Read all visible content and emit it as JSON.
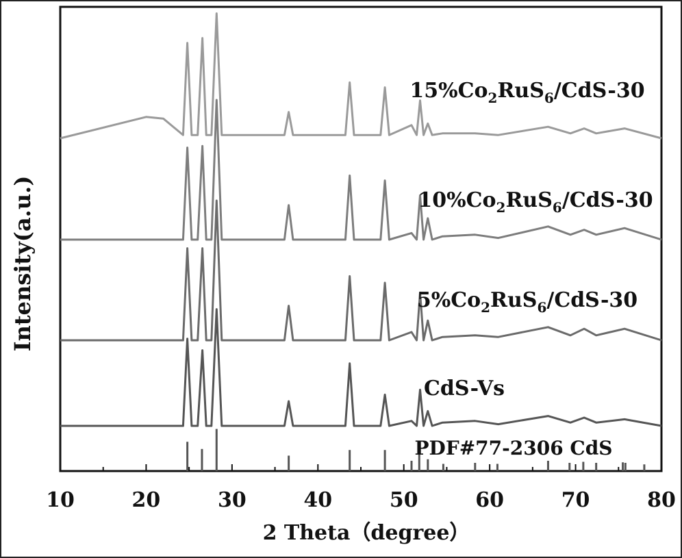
{
  "chart_data": {
    "type": "line",
    "xlabel": "2 Theta（degree）",
    "ylabel": "Intensity(a.u.)",
    "xlim": [
      10,
      80
    ],
    "xticks": [
      10,
      20,
      30,
      40,
      50,
      60,
      70,
      80
    ],
    "grid": false,
    "y_tick_labels_shown": false,
    "series": [
      {
        "name": "15%Co₂RuS₆/CdS-30",
        "label_main": "15%Co",
        "label_sub1": "2",
        "label_mid": "RuS",
        "label_sub2": "6",
        "label_tail": "/CdS-30",
        "color": "#9a9a9a",
        "baseline": 3.0,
        "x": [
          10,
          20,
          22,
          24.3,
          24.8,
          25.3,
          26.0,
          26.55,
          27.0,
          27.6,
          28.2,
          28.8,
          30,
          36.1,
          36.6,
          37.1,
          43.2,
          43.7,
          44.2,
          47.3,
          47.8,
          48.3,
          50.9,
          51.5,
          51.9,
          52.3,
          52.8,
          53.3,
          54.5,
          58.3,
          61,
          66.8,
          69.4,
          71.0,
          72.4,
          75.7,
          80
        ],
        "y": [
          3.0,
          3.13,
          3.12,
          3.02,
          3.58,
          3.02,
          3.02,
          3.61,
          3.02,
          3.02,
          3.76,
          3.02,
          3.02,
          3.02,
          3.16,
          3.02,
          3.02,
          3.34,
          3.02,
          3.02,
          3.31,
          3.02,
          3.08,
          3.02,
          3.23,
          3.02,
          3.09,
          3.02,
          3.03,
          3.03,
          3.02,
          3.07,
          3.03,
          3.06,
          3.03,
          3.06,
          3.0
        ]
      },
      {
        "name": "10%Co₂RuS₆/CdS-30",
        "label_main": "10%Co",
        "label_sub1": "2",
        "label_mid": "RuS",
        "label_sub2": "6",
        "label_tail": "/CdS-30",
        "color": "#7d7d7d",
        "baseline": 2.0,
        "x": [
          10,
          24.3,
          24.8,
          25.3,
          26.0,
          26.55,
          27.0,
          27.6,
          28.2,
          28.8,
          36.1,
          36.6,
          37.1,
          43.2,
          43.7,
          44.2,
          47.3,
          47.8,
          48.3,
          50.9,
          51.5,
          51.9,
          52.3,
          52.8,
          53.3,
          54.5,
          58.3,
          61,
          66.8,
          69.4,
          71.0,
          72.4,
          75.7,
          80
        ],
        "y": [
          2.0,
          2.0,
          2.56,
          2.0,
          2.0,
          2.57,
          2.0,
          2.0,
          2.85,
          2.0,
          2.0,
          2.21,
          2.0,
          2.0,
          2.39,
          2.0,
          2.0,
          2.36,
          2.0,
          2.04,
          2.0,
          2.27,
          2.0,
          2.13,
          2.0,
          2.02,
          2.03,
          2.01,
          2.08,
          2.03,
          2.06,
          2.03,
          2.07,
          2.0
        ]
      },
      {
        "name": "5%Co₂RuS₆/CdS-30",
        "label_main": "5%Co",
        "label_sub1": "2",
        "label_mid": "RuS",
        "label_sub2": "6",
        "label_tail": "/CdS-30",
        "color": "#6a6a6a",
        "baseline": 1.0,
        "x": [
          10,
          24.3,
          24.8,
          25.3,
          26.0,
          26.55,
          27.0,
          27.6,
          28.2,
          28.8,
          36.1,
          36.6,
          37.1,
          43.2,
          43.7,
          44.2,
          47.3,
          47.8,
          48.3,
          50.9,
          51.5,
          51.9,
          52.3,
          52.8,
          53.3,
          54.5,
          58.3,
          61,
          66.8,
          69.4,
          71.0,
          72.4,
          75.7,
          80
        ],
        "y": [
          1.0,
          1.0,
          1.56,
          1.0,
          1.0,
          1.56,
          1.0,
          1.0,
          1.85,
          1.0,
          1.0,
          1.21,
          1.0,
          1.0,
          1.39,
          1.0,
          1.0,
          1.35,
          1.0,
          1.05,
          1.0,
          1.29,
          1.0,
          1.12,
          1.0,
          1.02,
          1.03,
          1.02,
          1.08,
          1.03,
          1.07,
          1.03,
          1.07,
          1.0
        ]
      },
      {
        "name": "CdS-Vs",
        "label_main": "CdS-Vs",
        "label_sub1": "",
        "label_mid": "",
        "label_sub2": "",
        "label_tail": "",
        "color": "#555555",
        "baseline": 0.0,
        "x": [
          10,
          24.3,
          24.8,
          25.3,
          26.0,
          26.55,
          27.0,
          27.6,
          28.2,
          28.8,
          36.1,
          36.6,
          37.1,
          43.2,
          43.7,
          44.2,
          47.3,
          47.8,
          48.3,
          50.9,
          51.5,
          51.9,
          52.3,
          52.8,
          53.3,
          54.5,
          58.3,
          61,
          66.8,
          69.4,
          71.0,
          72.4,
          75.7,
          80
        ],
        "y": [
          0.0,
          0.0,
          0.53,
          0.0,
          0.0,
          0.46,
          0.0,
          0.0,
          0.71,
          0.0,
          0.0,
          0.15,
          0.0,
          0.0,
          0.38,
          0.0,
          0.0,
          0.19,
          0.0,
          0.03,
          0.0,
          0.22,
          0.0,
          0.09,
          0.0,
          0.02,
          0.03,
          0.01,
          0.06,
          0.02,
          0.05,
          0.02,
          0.04,
          0.0
        ]
      }
    ],
    "reference": {
      "name": "PDF#77-2306 CdS",
      "color": "#555555",
      "peaks_2theta": [
        24.8,
        26.5,
        28.2,
        36.6,
        43.7,
        47.8,
        50.9,
        51.8,
        52.8,
        54.6,
        58.3,
        60.9,
        66.8,
        69.3,
        70.9,
        72.4,
        75.5,
        75.8,
        78.0
      ],
      "relative_intensity": [
        0.57,
        0.43,
        0.82,
        0.3,
        0.41,
        0.41,
        0.2,
        0.36,
        0.23,
        0.14,
        0.16,
        0.14,
        0.2,
        0.16,
        0.18,
        0.16,
        0.17,
        0.16,
        0.13
      ]
    }
  }
}
